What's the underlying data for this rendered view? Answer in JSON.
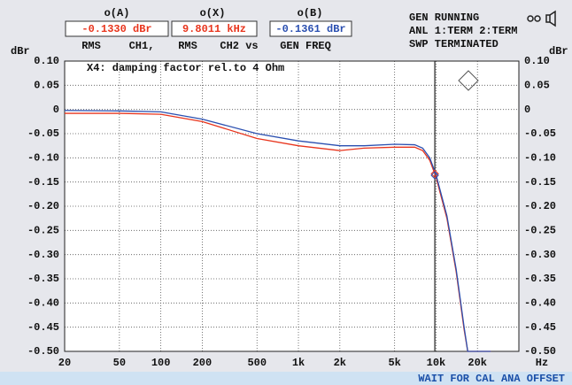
{
  "header": {
    "a_label": "o(A)",
    "a_readout": {
      "value": -0.133,
      "label": "-0.1330 dBr"
    },
    "a_mode": "RMS",
    "a_channel": "CH1,",
    "x_label": "o(X)",
    "x_readout": {
      "value": 9801.1,
      "label": "9.8011 kHz"
    },
    "x_mode": "RMS",
    "x_channel": "CH2 vs",
    "b_label": "o(B)",
    "b_readout": {
      "value": -0.1361,
      "label": "-0.1361 dBr"
    },
    "b_source": "GEN FREQ",
    "status_1": "GEN RUNNING",
    "status_2": "ANL 1:TERM 2:TERM",
    "status_3": "SWP TERMINATED"
  },
  "status_bar": "WAIT FOR CAL ANA OFFSET",
  "chart_data": {
    "type": "line",
    "annotation": "X4: damping factor rel.to 4 Ohm",
    "ylabel": "dBr",
    "y2label": "dBr",
    "xlabel": "Hz",
    "log_x": true,
    "grid": true,
    "x": [
      20,
      50,
      100,
      200,
      500,
      1000,
      2000,
      3000,
      5000,
      7000,
      8000,
      9000,
      10000,
      12000,
      14000,
      16000,
      17000,
      25000
    ],
    "series": [
      {
        "name": "CH1",
        "color": "#e8341c",
        "values": [
          -0.008,
          -0.008,
          -0.01,
          -0.025,
          -0.06,
          -0.075,
          -0.085,
          -0.08,
          -0.078,
          -0.078,
          -0.085,
          -0.105,
          -0.14,
          -0.225,
          -0.335,
          -0.455,
          -0.5,
          -0.5
        ]
      },
      {
        "name": "CH2",
        "color": "#2a4fb0",
        "values": [
          -0.002,
          -0.003,
          -0.005,
          -0.02,
          -0.05,
          -0.065,
          -0.075,
          -0.075,
          -0.072,
          -0.073,
          -0.08,
          -0.1,
          -0.135,
          -0.22,
          -0.33,
          -0.45,
          -0.5,
          -0.5
        ]
      }
    ],
    "xlim": [
      20,
      40000
    ],
    "xticks": [
      20,
      50,
      100,
      200,
      500,
      {
        "value": 1000,
        "label": "1k"
      },
      {
        "value": 2000,
        "label": "2k"
      },
      {
        "value": 5000,
        "label": "5k"
      },
      {
        "value": 10000,
        "label": "10k"
      },
      {
        "value": 20000,
        "label": "20k"
      }
    ],
    "ylim": [
      -0.5,
      0.1
    ],
    "yticks": [
      {
        "value": 0.1,
        "label": "0.10"
      },
      0.05,
      0,
      -0.05,
      {
        "value": -0.1,
        "label": "-0.10"
      },
      -0.15,
      {
        "value": -0.2,
        "label": "-0.20"
      },
      -0.25,
      {
        "value": -0.3,
        "label": "-0.30"
      },
      -0.35,
      {
        "value": -0.4,
        "label": "-0.40"
      },
      -0.45,
      {
        "value": -0.5,
        "label": "-0.50"
      }
    ]
  }
}
